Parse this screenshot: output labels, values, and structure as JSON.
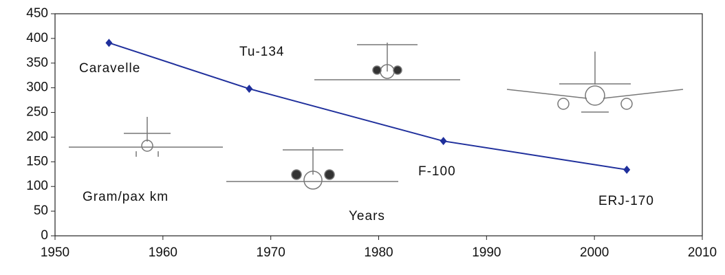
{
  "chart_data": {
    "type": "line",
    "x": [
      1955,
      1968,
      1986,
      2003
    ],
    "series": [
      {
        "name": "Gram/pax km",
        "color": "#1f2f9c",
        "values": [
          391,
          298,
          192,
          134
        ]
      }
    ],
    "xlim": [
      1950,
      2010
    ],
    "xticks": [
      1950,
      1960,
      1970,
      1980,
      1990,
      2000,
      2010
    ],
    "ylim": [
      0,
      450
    ],
    "yticks": [
      0,
      50,
      100,
      150,
      200,
      250,
      300,
      350,
      400,
      450
    ],
    "annotations": [
      "Caravelle",
      "Tu-134",
      "Gram/pax km",
      "Years",
      "F-100",
      "ERJ-170"
    ]
  }
}
